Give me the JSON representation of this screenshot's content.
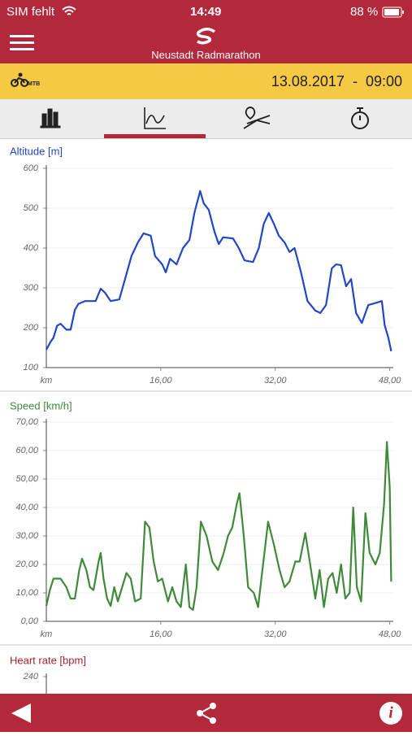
{
  "status_bar": {
    "carrier": "SIM fehlt",
    "time": "14:49",
    "battery": "88 %"
  },
  "header": {
    "title": "Neustadt Radmarathon"
  },
  "event_bar": {
    "badge": "MTB",
    "datetime": "13.08.2017  -  09:00"
  },
  "chart_data": [
    {
      "type": "line",
      "title": "Altitude [m]",
      "x_label": "km",
      "color": "#2146c7",
      "grid": true,
      "xlim": [
        0,
        48.5
      ],
      "xticks": [
        {
          "value": 16,
          "label": "16,00"
        },
        {
          "value": 32,
          "label": "32,00"
        },
        {
          "value": 48,
          "label": "48,00"
        }
      ],
      "ylim": [
        100,
        600
      ],
      "yticks": [
        100,
        200,
        300,
        400,
        500,
        600
      ],
      "x": [
        0,
        0.6,
        1,
        1.5,
        2,
        2.8,
        3.4,
        4,
        4.5,
        5.4,
        6.9,
        7.6,
        8.2,
        9,
        10.2,
        11.1,
        11.9,
        12.8,
        13.6,
        14.6,
        15.2,
        16.2,
        16.7,
        17.3,
        18.2,
        19.1,
        20,
        20.7,
        21.5,
        22,
        22.7,
        23.5,
        24.1,
        24.7,
        26.1,
        26.9,
        27.7,
        28.9,
        29.7,
        30.4,
        31.1,
        31.8,
        32.5,
        33.3,
        34,
        34.7,
        35.6,
        36.5,
        37.6,
        38.3,
        39.1,
        39.9,
        40.5,
        41.2,
        41.9,
        42.6,
        43.3,
        44.1,
        45,
        46.2,
        46.9,
        47.3,
        47.8,
        48.2
      ],
      "values": [
        145,
        165,
        175,
        205,
        210,
        195,
        195,
        245,
        260,
        267,
        267,
        298,
        288,
        267,
        271,
        328,
        380,
        414,
        437,
        431,
        380,
        359,
        339,
        373,
        359,
        400,
        420,
        488,
        543,
        512,
        496,
        441,
        410,
        427,
        424,
        400,
        369,
        365,
        400,
        461,
        488,
        461,
        431,
        414,
        390,
        400,
        339,
        267,
        243,
        237,
        257,
        349,
        359,
        357,
        304,
        322,
        237,
        212,
        257,
        263,
        267,
        206,
        176,
        141
      ]
    },
    {
      "type": "line",
      "title": "Speed [km/h]",
      "x_label": "km",
      "color": "#3f8a3a",
      "grid": true,
      "xlim": [
        0,
        48.5
      ],
      "xticks": [
        {
          "value": 16,
          "label": "16,00"
        },
        {
          "value": 32,
          "label": "32,00"
        },
        {
          "value": 48,
          "label": "48,00"
        }
      ],
      "ylim": [
        0,
        70
      ],
      "yticks": [
        {
          "value": 0,
          "label": "0,00"
        },
        {
          "value": 10,
          "label": "10,00"
        },
        {
          "value": 20,
          "label": "20,00"
        },
        {
          "value": 30,
          "label": "30,00"
        },
        {
          "value": 40,
          "label": "40,00"
        },
        {
          "value": 50,
          "label": "50,00"
        },
        {
          "value": 60,
          "label": "60,00"
        },
        {
          "value": 70,
          "label": "70,00"
        }
      ],
      "x": [
        0,
        0.5,
        1,
        2,
        2.8,
        3.4,
        4,
        4.6,
        5,
        5.6,
        6.1,
        6.6,
        7.3,
        7.6,
        8,
        8.5,
        9,
        9.5,
        10,
        10.6,
        11.2,
        11.8,
        12.4,
        13.2,
        13.8,
        14.4,
        15,
        15.6,
        16.2,
        17,
        17.6,
        18.2,
        18.8,
        19.5,
        20,
        20.5,
        21,
        21.6,
        22.4,
        23.2,
        24,
        24.8,
        25.4,
        26,
        26.6,
        27,
        27.6,
        28.2,
        29,
        29.6,
        30.2,
        31,
        31.8,
        32.6,
        33.3,
        34,
        34.8,
        35.4,
        36.2,
        37,
        37.6,
        38.2,
        38.8,
        39.4,
        40,
        40.6,
        41.2,
        41.8,
        42.4,
        42.9,
        43.4,
        44,
        44.6,
        45.2,
        46,
        46.6,
        47.2,
        47.6,
        48,
        48.2
      ],
      "values": [
        5.4,
        11,
        15,
        15,
        12,
        8,
        8,
        18,
        22,
        18,
        12,
        11,
        21,
        24,
        15,
        8,
        5.4,
        12,
        7,
        12,
        17,
        15,
        7,
        8,
        35,
        33,
        21,
        14,
        15,
        7,
        12,
        7,
        5,
        20,
        5,
        4,
        12,
        35,
        30,
        21,
        18,
        24,
        30,
        33,
        41,
        45,
        30,
        12,
        10,
        5,
        18,
        35,
        27,
        18,
        12,
        14,
        21,
        21,
        31,
        18,
        8,
        18,
        5,
        15,
        17,
        10,
        20,
        8,
        10,
        40,
        12,
        7,
        38,
        24,
        20,
        24,
        41,
        63,
        47,
        14
      ]
    },
    {
      "type": "line",
      "title": "Heart rate [bpm]",
      "color": "#a3202e",
      "yticks": [
        240
      ]
    }
  ]
}
